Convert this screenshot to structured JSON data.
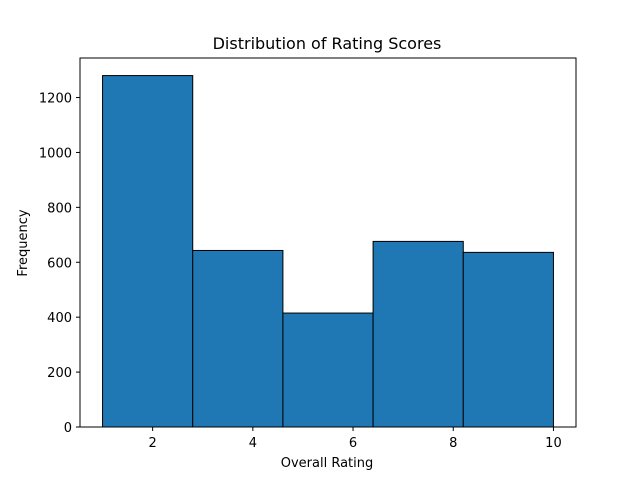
{
  "chart_data": {
    "type": "bar",
    "title": "Distribution of Rating Scores",
    "xlabel": "Overall Rating",
    "ylabel": "Frequency",
    "bins": [
      {
        "start": 1.0,
        "end": 2.8,
        "value": 1280
      },
      {
        "start": 2.8,
        "end": 4.6,
        "value": 643
      },
      {
        "start": 4.6,
        "end": 6.4,
        "value": 415
      },
      {
        "start": 6.4,
        "end": 8.2,
        "value": 676
      },
      {
        "start": 8.2,
        "end": 10.0,
        "value": 636
      }
    ],
    "xlim": [
      0.55,
      10.45
    ],
    "ylim": [
      0,
      1344
    ],
    "xticks": [
      2,
      4,
      6,
      8,
      10
    ],
    "yticks": [
      0,
      200,
      400,
      600,
      800,
      1000,
      1200
    ],
    "grid": false,
    "colors": {
      "bar": "#1f77b4",
      "edge": "#000000"
    }
  }
}
